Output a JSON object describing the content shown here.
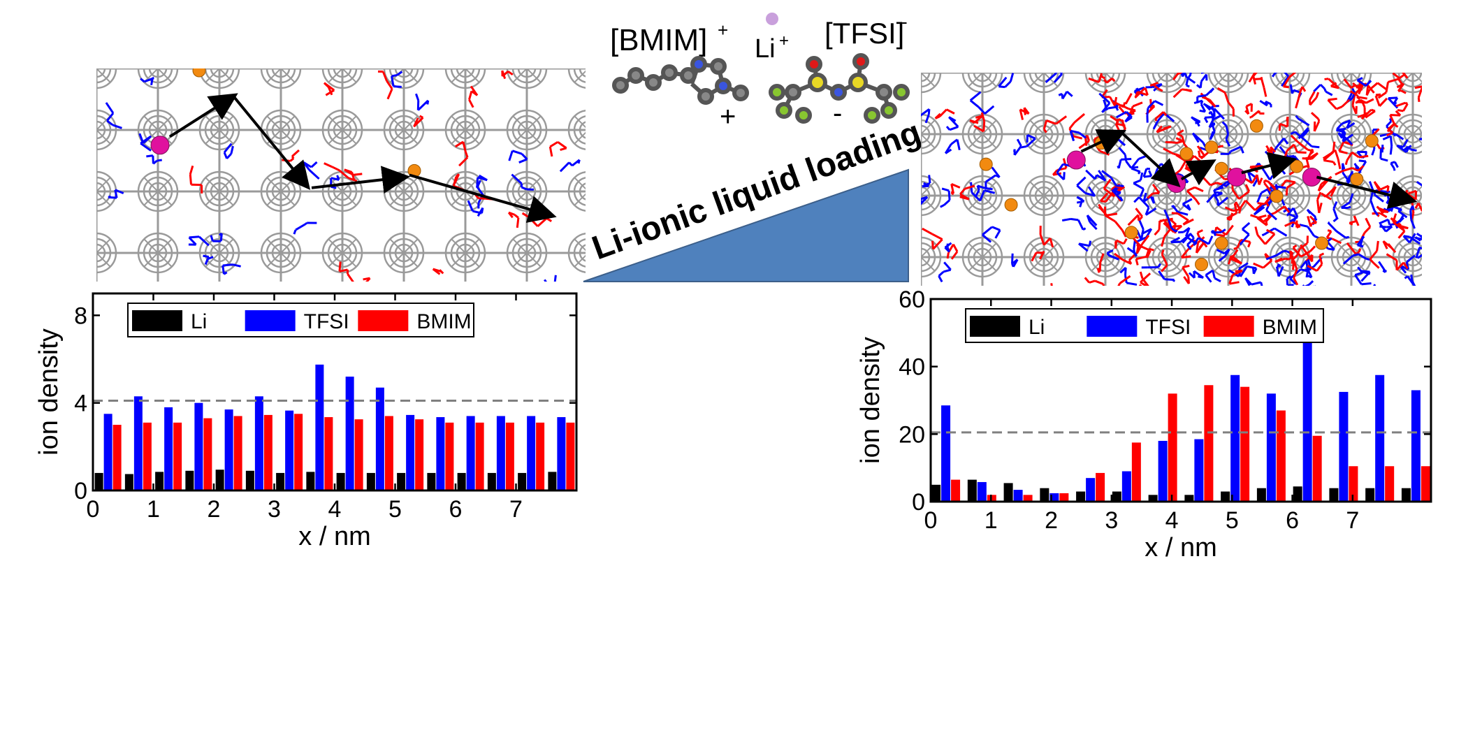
{
  "molecules": {
    "cation_label": "[BMIM]",
    "cation_charge_sup": "+",
    "li_label": "Li",
    "li_charge_sup": "+",
    "anion_label": "[TFSI]",
    "anion_charge_sup": "-",
    "cation_sign": "+",
    "anion_sign": "-"
  },
  "loading_label": "Li-ionic liquid loading",
  "colors": {
    "li": "#000000",
    "tfsi": "#0000ff",
    "bmim": "#ff0000",
    "wedge": "#4f81bd",
    "framework": "#9a9a9a",
    "li_atom": "#e0119e",
    "cation_atom": "#f28a10",
    "li_marker": "#c9a0dc"
  },
  "chart_data": [
    {
      "type": "bar",
      "xlabel": "x / nm",
      "ylabel": "ion density",
      "xlim": [
        0,
        8
      ],
      "ylim": [
        0,
        9
      ],
      "xticks": [
        0,
        1,
        2,
        3,
        4,
        5,
        6,
        7
      ],
      "yticks": [
        0,
        4,
        8
      ],
      "legend_position": "top-left",
      "reference_line": 4.1,
      "x": [
        0.25,
        0.75,
        1.25,
        1.75,
        2.25,
        2.75,
        3.25,
        3.75,
        4.25,
        4.75,
        5.25,
        5.75,
        6.25,
        6.75,
        7.25,
        7.75
      ],
      "series": [
        {
          "name": "Li",
          "color_key": "li",
          "values": [
            0.8,
            0.75,
            0.85,
            0.9,
            0.95,
            0.9,
            0.8,
            0.85,
            0.8,
            0.8,
            0.8,
            0.8,
            0.8,
            0.8,
            0.8,
            0.85
          ]
        },
        {
          "name": "TFSI",
          "color_key": "tfsi",
          "values": [
            3.5,
            4.3,
            3.8,
            4.0,
            3.7,
            4.3,
            3.65,
            5.75,
            5.2,
            4.7,
            3.45,
            3.35,
            3.4,
            3.4,
            3.4,
            3.35
          ]
        },
        {
          "name": "BMIM",
          "color_key": "bmim",
          "values": [
            3.0,
            3.1,
            3.1,
            3.3,
            3.4,
            3.45,
            3.5,
            3.35,
            3.25,
            3.4,
            3.25,
            3.1,
            3.1,
            3.1,
            3.1,
            3.1
          ]
        }
      ]
    },
    {
      "type": "bar",
      "xlabel": "x / nm",
      "ylabel": "ion density",
      "xlim": [
        0,
        8.3
      ],
      "ylim": [
        0,
        60
      ],
      "xticks": [
        0,
        1,
        2,
        3,
        4,
        5,
        6,
        7
      ],
      "yticks": [
        0,
        20,
        40,
        60
      ],
      "legend_position": "top-left",
      "reference_line": 20.5,
      "x": [
        0.25,
        0.85,
        1.45,
        2.05,
        2.65,
        3.25,
        3.85,
        4.45,
        5.05,
        5.65,
        6.25,
        6.85,
        7.45,
        8.05
      ],
      "series": [
        {
          "name": "Li",
          "color_key": "li",
          "values": [
            5,
            6.5,
            5.5,
            4,
            3,
            3,
            2,
            2,
            3,
            4,
            4.5,
            4,
            4,
            4
          ]
        },
        {
          "name": "TFSI",
          "color_key": "tfsi",
          "values": [
            28.5,
            5.8,
            3.5,
            2.5,
            7,
            9,
            18,
            18.5,
            37.5,
            32,
            52.5,
            32.5,
            37.5,
            33
          ]
        },
        {
          "name": "BMIM",
          "color_key": "bmim",
          "values": [
            6.5,
            2,
            2,
            2.5,
            8.5,
            17.5,
            32,
            34.5,
            34,
            27,
            19.5,
            10.5,
            10.5,
            10.5
          ]
        }
      ]
    }
  ]
}
